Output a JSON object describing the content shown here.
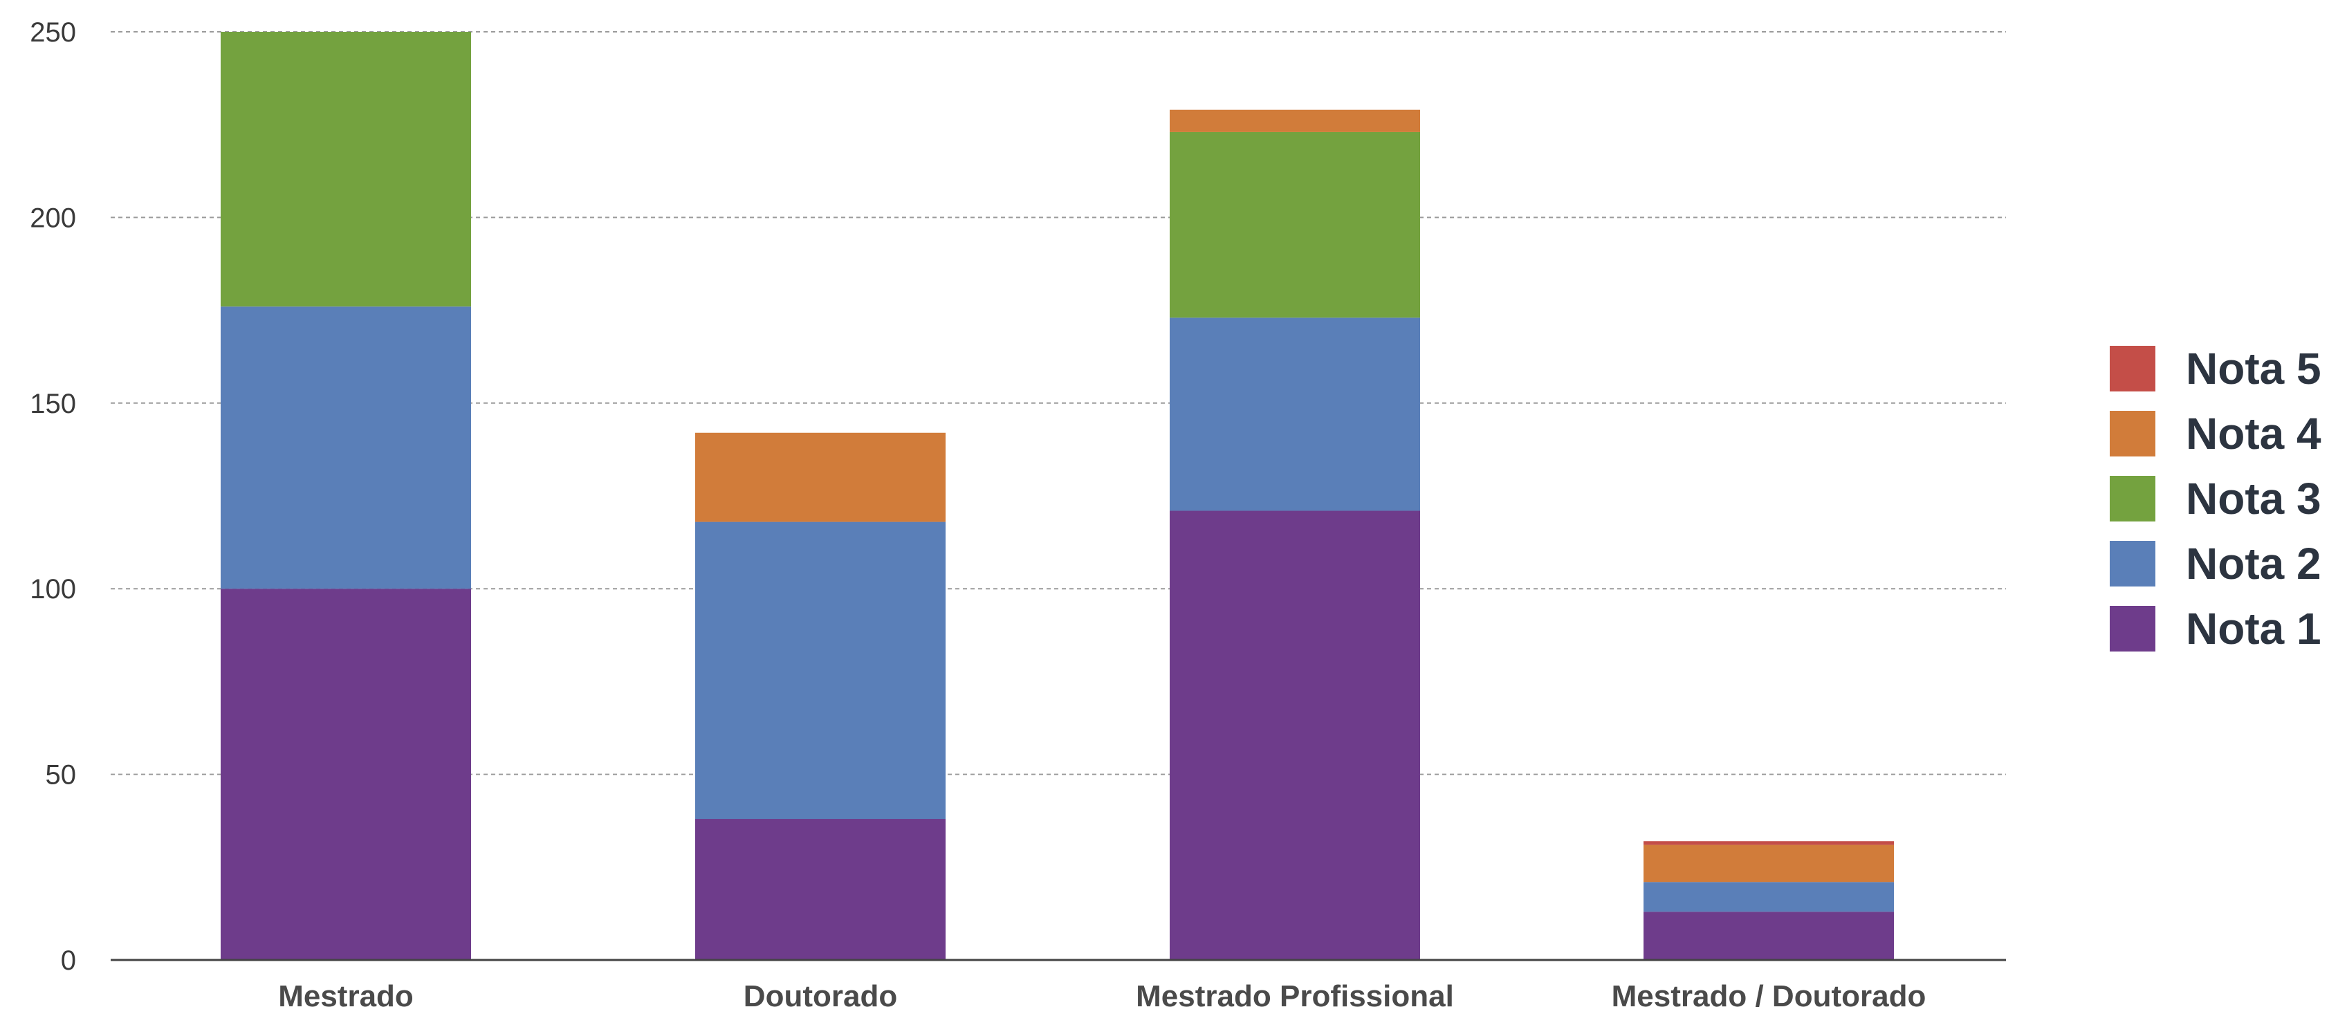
{
  "chart_data": {
    "type": "bar",
    "stacked": true,
    "title": "",
    "xlabel": "",
    "ylabel": "",
    "categories": [
      "Mestrado",
      "Doutorado",
      "Mestrado Profissional",
      "Mestrado / Doutorado"
    ],
    "series": [
      {
        "name": "Nota 1",
        "color": "#6e3c8b",
        "values": [
          100,
          38,
          121,
          13
        ]
      },
      {
        "name": "Nota 2",
        "color": "#5a7fb8",
        "values": [
          76,
          80,
          52,
          8
        ]
      },
      {
        "name": "Nota 3",
        "color": "#74a23f",
        "values": [
          74,
          0,
          50,
          0
        ]
      },
      {
        "name": "Nota 4",
        "color": "#d17c3a",
        "values": [
          0,
          24,
          6,
          10
        ]
      },
      {
        "name": "Nota 5",
        "color": "#c44e48",
        "values": [
          0,
          0,
          0,
          1
        ]
      }
    ],
    "ylim": [
      0,
      250
    ],
    "yticks": [
      0,
      50,
      100,
      150,
      200,
      250
    ],
    "grid": true,
    "legend_position": "right",
    "legend_order": [
      "Nota 5",
      "Nota 4",
      "Nota 3",
      "Nota 2",
      "Nota 1"
    ]
  }
}
